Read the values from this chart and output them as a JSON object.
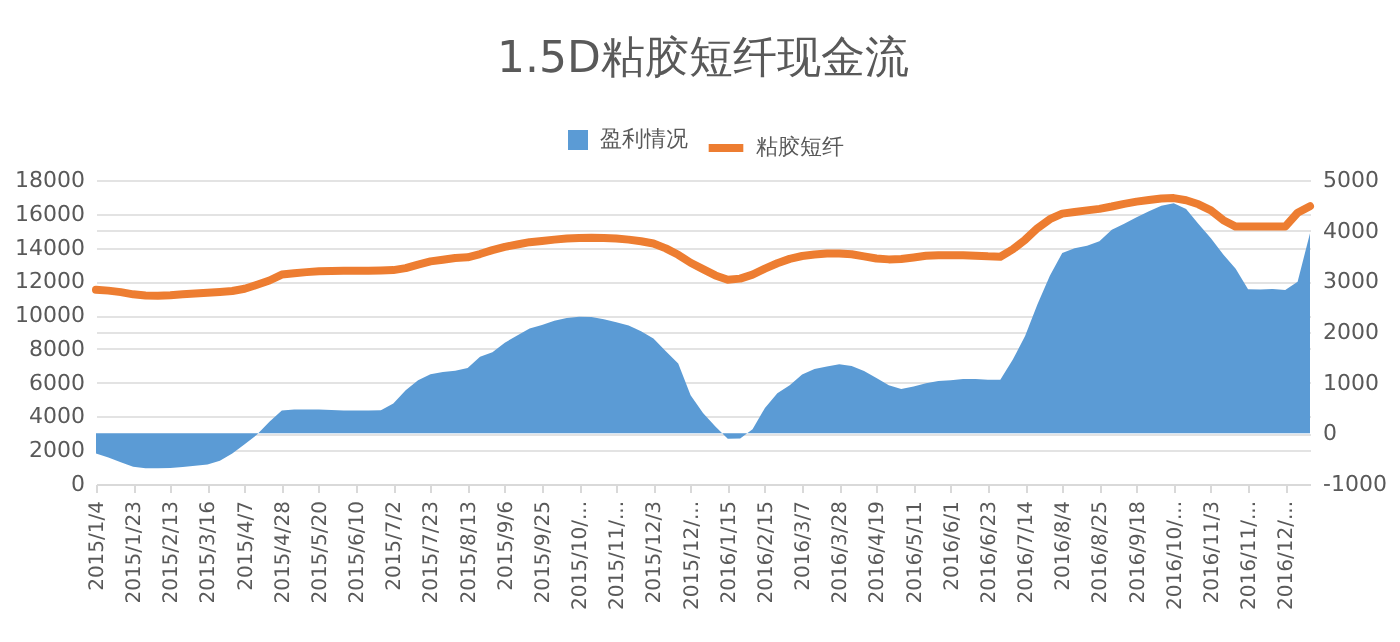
{
  "chart_data": {
    "type": "line",
    "title": "1.5D粘胶短纤现金流",
    "categories": [
      "2015/1/4",
      null,
      null,
      "2015/1/23",
      null,
      null,
      "2015/2/13",
      null,
      null,
      "2015/3/16",
      null,
      null,
      "2015/4/7",
      null,
      null,
      "2015/4/28",
      null,
      null,
      "2015/5/20",
      null,
      null,
      "2015/6/10",
      null,
      null,
      "2015/7/2",
      null,
      null,
      "2015/7/23",
      null,
      null,
      "2015/8/13",
      null,
      null,
      "2015/9/6",
      null,
      null,
      "2015/9/25",
      null,
      null,
      "2015/10/...",
      null,
      null,
      "2015/11/...",
      null,
      null,
      "2015/12/3",
      null,
      null,
      "2015/12/...",
      null,
      null,
      "2016/1/15",
      null,
      null,
      "2016/2/15",
      null,
      null,
      "2016/3/7",
      null,
      null,
      "2016/3/28",
      null,
      null,
      "2016/4/19",
      null,
      null,
      "2016/5/11",
      null,
      null,
      "2016/6/1",
      null,
      null,
      "2016/6/23",
      null,
      null,
      "2016/7/14",
      null,
      null,
      "2016/8/4",
      null,
      null,
      "2016/8/25",
      null,
      null,
      "2016/9/18",
      null,
      null,
      "2016/10/...",
      null,
      null,
      "2016/11/3",
      null,
      null,
      "2016/11/...",
      null,
      null,
      "2016/12/...",
      null,
      null
    ],
    "series": [
      {
        "name": "盈利情况",
        "type": "area",
        "axis": "y2",
        "color": "#5b9bd5",
        "values": [
          -400,
          -475,
          -570,
          -660,
          -688,
          -690,
          -684,
          -663,
          -640,
          -617,
          -540,
          -400,
          -215,
          -25,
          230,
          450,
          470,
          470,
          470,
          462,
          452,
          450,
          450,
          456,
          590,
          850,
          1050,
          1165,
          1210,
          1235,
          1290,
          1510,
          1600,
          1790,
          1930,
          2070,
          2140,
          2220,
          2275,
          2300,
          2295,
          2250,
          2190,
          2130,
          2015,
          1870,
          1620,
          1380,
          750,
          400,
          135,
          -105,
          -100,
          80,
          500,
          790,
          950,
          1160,
          1270,
          1320,
          1365,
          1330,
          1230,
          1090,
          950,
          875,
          925,
          990,
          1035,
          1047,
          1070,
          1070,
          1060,
          1060,
          1450,
          1920,
          2550,
          3110,
          3560,
          3655,
          3700,
          3790,
          4020,
          4135,
          4265,
          4385,
          4490,
          4540,
          4430,
          4130,
          3850,
          3530,
          3250,
          2845,
          2840,
          2850,
          2830,
          2990,
          3950
        ]
      },
      {
        "name": "粘胶短纤",
        "color": "#ed7d31",
        "values": [
          11500,
          11450,
          11360,
          11230,
          11160,
          11150,
          11180,
          11230,
          11275,
          11320,
          11370,
          11430,
          11560,
          11800,
          12050,
          12400,
          12480,
          12545,
          12595,
          12615,
          12620,
          12620,
          12620,
          12637,
          12665,
          12780,
          12990,
          13180,
          13280,
          13385,
          13425,
          13615,
          13850,
          14040,
          14180,
          14320,
          14390,
          14470,
          14530,
          14567,
          14580,
          14567,
          14530,
          14470,
          14370,
          14240,
          13950,
          13570,
          13100,
          12720,
          12350,
          12090,
          12160,
          12400,
          12750,
          13070,
          13330,
          13500,
          13590,
          13650,
          13650,
          13600,
          13480,
          13350,
          13300,
          13320,
          13410,
          13510,
          13550,
          13550,
          13550,
          13520,
          13480,
          13460,
          13890,
          14460,
          15150,
          15680,
          16010,
          16110,
          16200,
          16290,
          16430,
          16590,
          16720,
          16820,
          16910,
          16930,
          16800,
          16560,
          16200,
          15620,
          15240,
          15240,
          15240,
          15240,
          15240,
          16060,
          16450
        ]
      }
    ],
    "ylim": [
      0,
      18000
    ],
    "yticks": [
      0,
      2000,
      4000,
      6000,
      8000,
      10000,
      12000,
      14000,
      16000,
      18000
    ],
    "y2lim": [
      -1000,
      5000
    ],
    "y2ticks": [
      -1000,
      0,
      1000,
      2000,
      3000,
      4000,
      5000
    ],
    "grid": true,
    "legend": "top",
    "line_style": "solid",
    "marker": "none"
  }
}
